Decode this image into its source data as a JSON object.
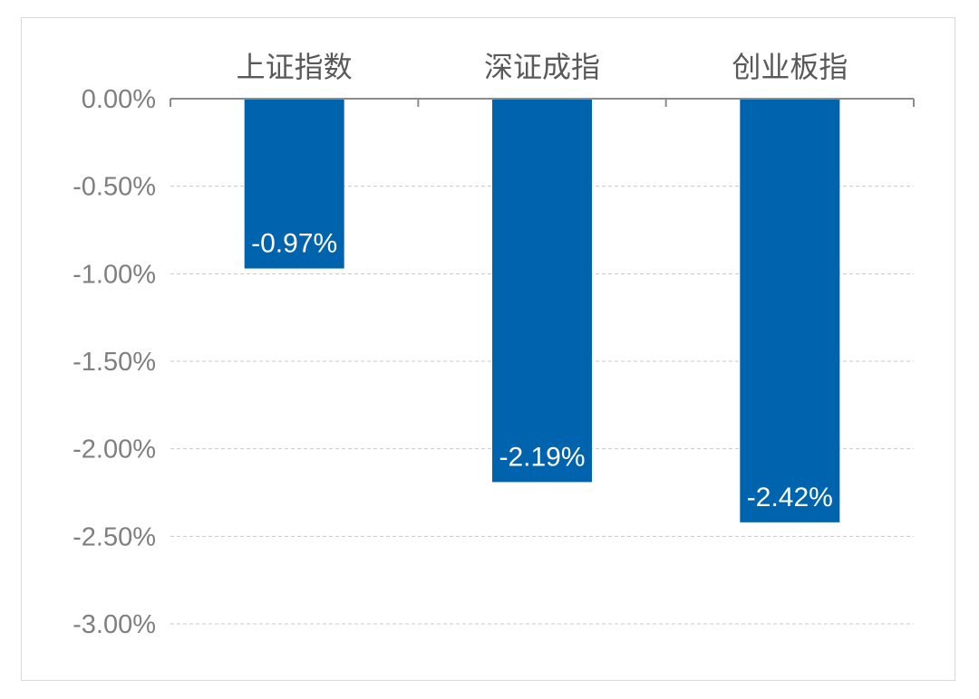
{
  "chart_data": {
    "type": "bar",
    "categories": [
      "上证指数",
      "深证成指",
      "创业板指"
    ],
    "series": [
      {
        "values": [
          -0.97,
          -2.19,
          -2.42
        ],
        "labels": [
          "-0.97%",
          "-2.19%",
          "-2.42%"
        ]
      }
    ],
    "ylim": [
      -3.0,
      0.0
    ],
    "yticks": [
      0.0,
      -0.5,
      -1.0,
      -1.5,
      -2.0,
      -2.5,
      -3.0
    ],
    "ytick_labels": [
      "0.00%",
      "-0.50%",
      "-1.00%",
      "-1.50%",
      "-2.00%",
      "-2.50%",
      "-3.00%"
    ],
    "x_axis_position": "top",
    "grid": "horizontal dashed",
    "bar_color": "#0063AE",
    "title": "",
    "xlabel": "",
    "ylabel": ""
  }
}
